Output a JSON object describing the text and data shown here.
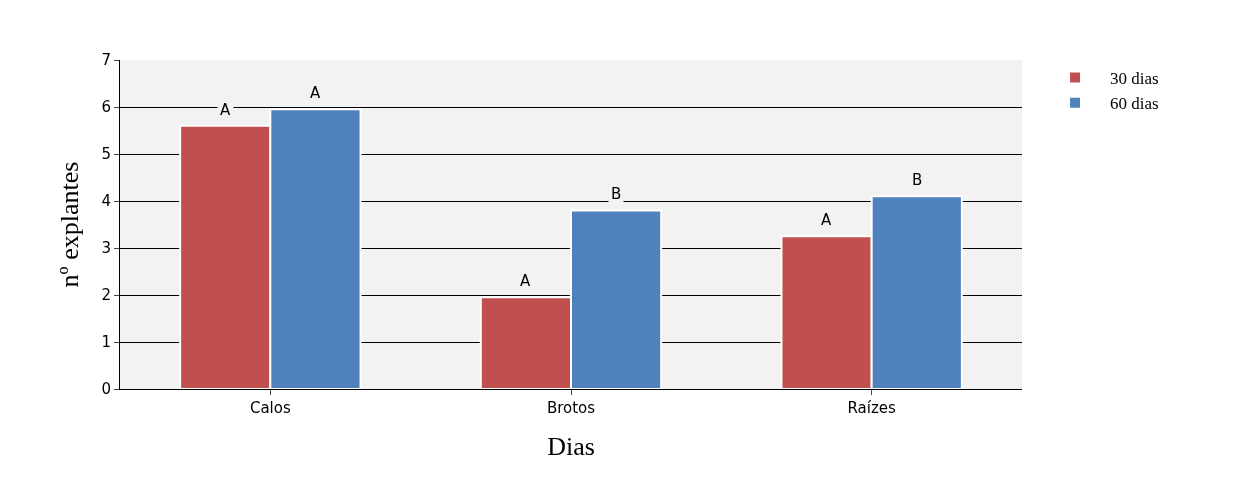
{
  "chart_data": {
    "type": "bar",
    "xlabel": "Dias",
    "ylabel": "nº explantes",
    "categories": [
      "Calos",
      "Brotos",
      "Raízes"
    ],
    "series": [
      {
        "name": "30 dias",
        "color": "#c0504d",
        "values": [
          5.6,
          1.95,
          3.25
        ],
        "value_labels": [
          "A",
          "A",
          "A"
        ]
      },
      {
        "name": "60 dias",
        "color": "#4f81bd",
        "values": [
          5.95,
          3.8,
          4.1
        ],
        "value_labels": [
          "A",
          "B",
          "B"
        ]
      }
    ],
    "ylim": [
      0,
      7
    ],
    "yticks": [
      0,
      1,
      2,
      3,
      4,
      5,
      6,
      7
    ],
    "grid": "y",
    "legend": "top right"
  }
}
